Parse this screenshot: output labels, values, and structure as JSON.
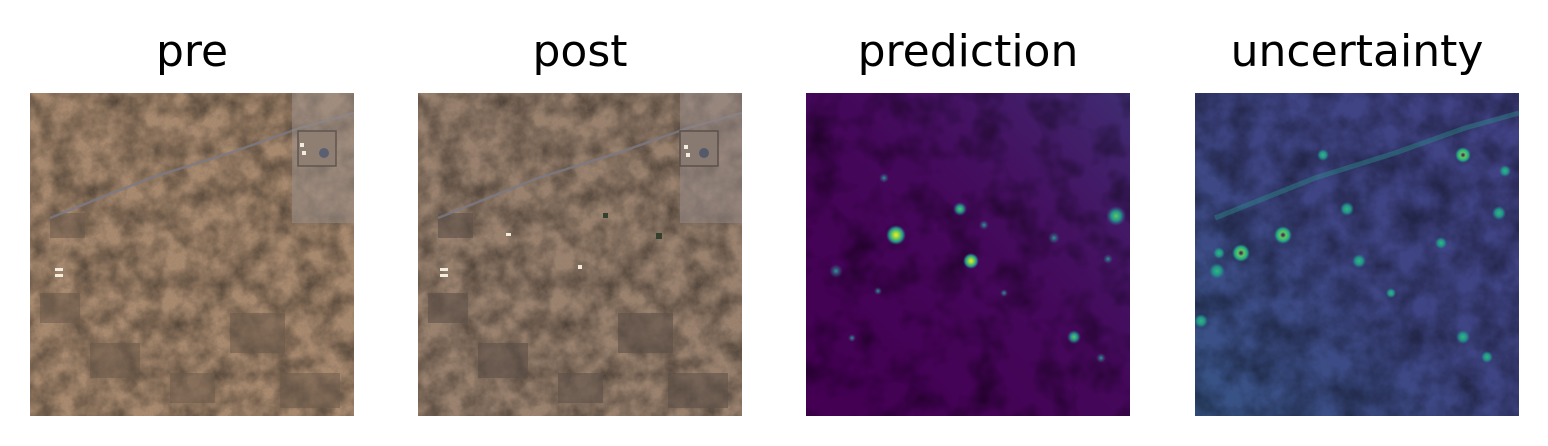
{
  "figure": {
    "panels": [
      {
        "title": "pre"
      },
      {
        "title": "post"
      },
      {
        "title": "prediction"
      },
      {
        "title": "uncertainty"
      }
    ]
  },
  "colors": {
    "satellite_base": "#a7896d",
    "satellite_dark": "#5d4f43",
    "satellite_light": "#c7a688",
    "viridis_low": "#440154",
    "viridis_mid": "#21918c",
    "viridis_high": "#fde725"
  }
}
